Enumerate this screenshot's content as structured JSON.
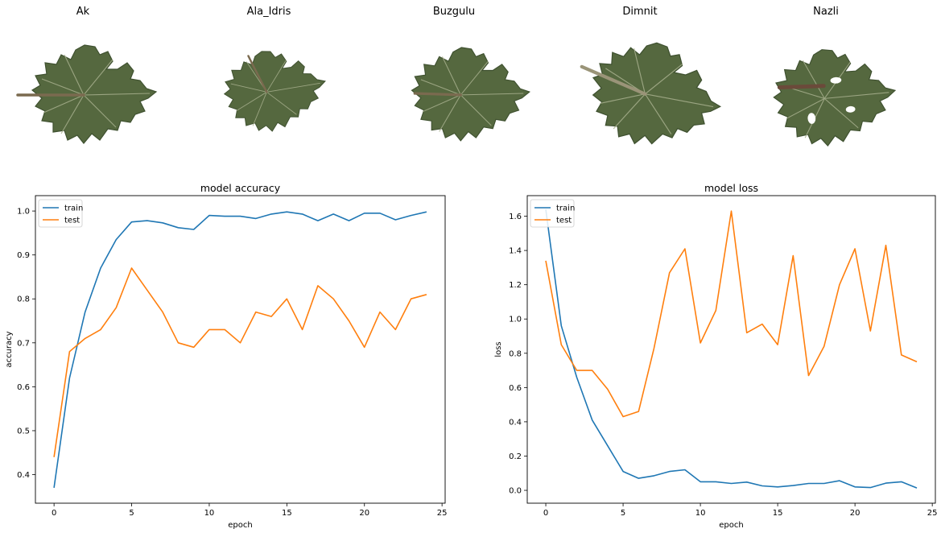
{
  "leaves": [
    {
      "label": "Ak",
      "icon": "grape-leaf-icon"
    },
    {
      "label": "Ala_Idris",
      "icon": "grape-leaf-icon"
    },
    {
      "label": "Buzgulu",
      "icon": "grape-leaf-icon"
    },
    {
      "label": "Dimnit",
      "icon": "grape-leaf-icon"
    },
    {
      "label": "Nazli",
      "icon": "grape-leaf-icon"
    }
  ],
  "colors": {
    "train": "#1f77b4",
    "test": "#ff7f0e",
    "leaf": "#55683f",
    "leaf_dark": "#3f5130",
    "vein": "#a8b08e",
    "stem": "#7a6a4f"
  },
  "chart_data": [
    {
      "type": "line",
      "title": "model accuracy",
      "xlabel": "epoch",
      "ylabel": "accuracy",
      "xlim": [
        -1.2,
        25.2
      ],
      "ylim": [
        0.335,
        1.035
      ],
      "xticks": [
        "0",
        "5",
        "10",
        "15",
        "20",
        "25"
      ],
      "yticks": [
        "0.4",
        "0.5",
        "0.6",
        "0.7",
        "0.8",
        "0.9",
        "1.0"
      ],
      "legend": "upper left",
      "x": [
        0,
        1,
        2,
        3,
        4,
        5,
        6,
        7,
        8,
        9,
        10,
        11,
        12,
        13,
        14,
        15,
        16,
        17,
        18,
        19,
        20,
        21,
        22,
        23,
        24
      ],
      "series": [
        {
          "name": "train",
          "values": [
            0.37,
            0.62,
            0.77,
            0.87,
            0.935,
            0.975,
            0.978,
            0.973,
            0.962,
            0.958,
            0.99,
            0.988,
            0.988,
            0.983,
            0.993,
            0.998,
            0.993,
            0.978,
            0.993,
            0.978,
            0.995,
            0.995,
            0.98,
            0.99,
            0.998
          ]
        },
        {
          "name": "test",
          "values": [
            0.44,
            0.68,
            0.71,
            0.73,
            0.78,
            0.87,
            0.82,
            0.77,
            0.7,
            0.69,
            0.73,
            0.73,
            0.7,
            0.77,
            0.76,
            0.8,
            0.73,
            0.83,
            0.8,
            0.75,
            0.69,
            0.77,
            0.73,
            0.8,
            0.81
          ]
        }
      ]
    },
    {
      "type": "line",
      "title": "model loss",
      "xlabel": "epoch",
      "ylabel": "loss",
      "xlim": [
        -1.2,
        25.2
      ],
      "ylim": [
        -0.075,
        1.72
      ],
      "xticks": [
        "0",
        "5",
        "10",
        "15",
        "20",
        "25"
      ],
      "yticks": [
        "0.0",
        "0.2",
        "0.4",
        "0.6",
        "0.8",
        "1.0",
        "1.2",
        "1.4",
        "1.6"
      ],
      "legend": "upper left",
      "x": [
        0,
        1,
        2,
        3,
        4,
        5,
        6,
        7,
        8,
        9,
        10,
        11,
        12,
        13,
        14,
        15,
        16,
        17,
        18,
        19,
        20,
        21,
        22,
        23,
        24
      ],
      "series": [
        {
          "name": "train",
          "values": [
            1.64,
            0.96,
            0.66,
            0.41,
            0.26,
            0.11,
            0.07,
            0.085,
            0.11,
            0.12,
            0.05,
            0.05,
            0.04,
            0.048,
            0.026,
            0.02,
            0.028,
            0.04,
            0.04,
            0.056,
            0.02,
            0.016,
            0.042,
            0.05,
            0.014
          ]
        },
        {
          "name": "test",
          "values": [
            1.34,
            0.85,
            0.7,
            0.7,
            0.59,
            0.43,
            0.46,
            0.83,
            1.27,
            1.41,
            0.86,
            1.05,
            1.63,
            0.92,
            0.97,
            0.85,
            1.37,
            0.67,
            0.84,
            1.2,
            1.41,
            0.93,
            1.43,
            0.79,
            0.75
          ]
        }
      ]
    }
  ]
}
